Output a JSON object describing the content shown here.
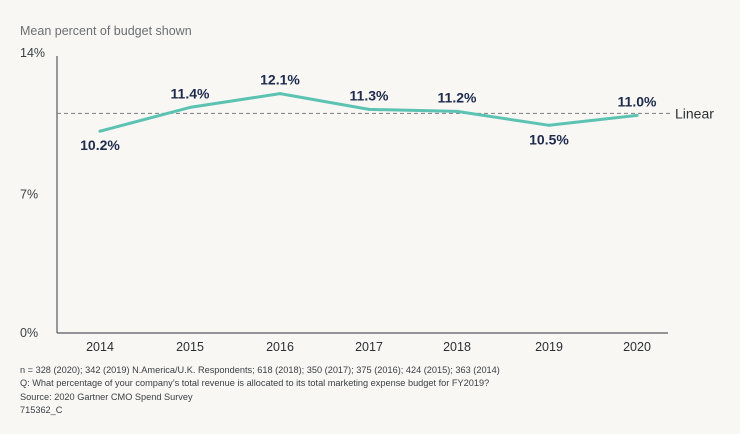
{
  "chart_data": {
    "type": "line",
    "ylabel": "Mean percent of budget shown",
    "categories": [
      "2014",
      "2015",
      "2016",
      "2017",
      "2018",
      "2019",
      "2020"
    ],
    "series": [
      {
        "values": [
          10.2,
          11.4,
          12.1,
          11.3,
          11.2,
          10.5,
          11.0
        ],
        "color": "#5cc3b3"
      }
    ],
    "data_labels": [
      "10.2%",
      "11.4%",
      "12.1%",
      "11.3%",
      "11.2%",
      "10.5%",
      "11.0%"
    ],
    "yticks": [
      "0%",
      "7%",
      "14%"
    ],
    "ylim": [
      0,
      14
    ],
    "reference_line": {
      "label": "Linear",
      "value": 11.1
    },
    "grid": false
  },
  "footnotes": [
    "n = 328 (2020); 342 (2019) N.America/U.K. Respondents; 618 (2018); 350 (2017); 375 (2016); 424 (2015); 363 (2014)",
    "Q: What percentage of your company’s total revenue is allocated to its total marketing expense budget for FY2019?",
    "Source: 2020 Gartner CMO Spend Survey",
    "715362_C"
  ],
  "colors": {
    "line": "#5cc3b3",
    "label": "#1f2b4d",
    "axis": "#555a5f",
    "text": "#3a3f44"
  }
}
